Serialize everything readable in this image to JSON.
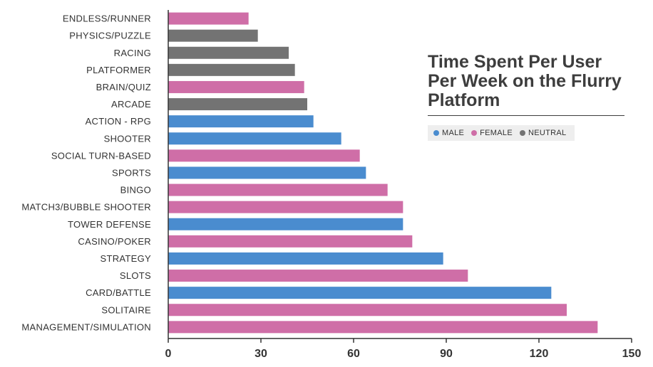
{
  "chart_data": {
    "type": "bar",
    "orientation": "horizontal",
    "title": "Time Spent Per User Per Week on the Flurry Platform",
    "categories": [
      "ENDLESS/RUNNER",
      "PHYSICS/PUZZLE",
      "RACING",
      "PLATFORMER",
      "BRAIN/QUIZ",
      "ARCADE",
      "ACTION - RPG",
      "SHOOTER",
      "SOCIAL TURN-BASED",
      "SPORTS",
      "BINGO",
      "MATCH3/BUBBLE SHOOTER",
      "TOWER DEFENSE",
      "CASINO/POKER",
      "STRATEGY",
      "SLOTS",
      "CARD/BATTLE",
      "SOLITAIRE",
      "MANAGEMENT/SIMULATION"
    ],
    "values": [
      26,
      29,
      39,
      41,
      44,
      45,
      47,
      56,
      62,
      64,
      71,
      76,
      76,
      79,
      89,
      97,
      124,
      129,
      139
    ],
    "groups": [
      "FEMALE",
      "NEUTRAL",
      "NEUTRAL",
      "NEUTRAL",
      "FEMALE",
      "NEUTRAL",
      "MALE",
      "MALE",
      "FEMALE",
      "MALE",
      "FEMALE",
      "FEMALE",
      "MALE",
      "FEMALE",
      "MALE",
      "FEMALE",
      "MALE",
      "FEMALE",
      "FEMALE"
    ],
    "legend": [
      {
        "name": "MALE",
        "color": "#4a8ccf"
      },
      {
        "name": "FEMALE",
        "color": "#cf6ea7"
      },
      {
        "name": "NEUTRAL",
        "color": "#737373"
      }
    ],
    "xlim": [
      0,
      150
    ],
    "xticks": [
      0,
      30,
      60,
      90,
      120,
      150
    ],
    "xlabel": "",
    "ylabel": "",
    "grid": false,
    "legend_position": "right"
  }
}
